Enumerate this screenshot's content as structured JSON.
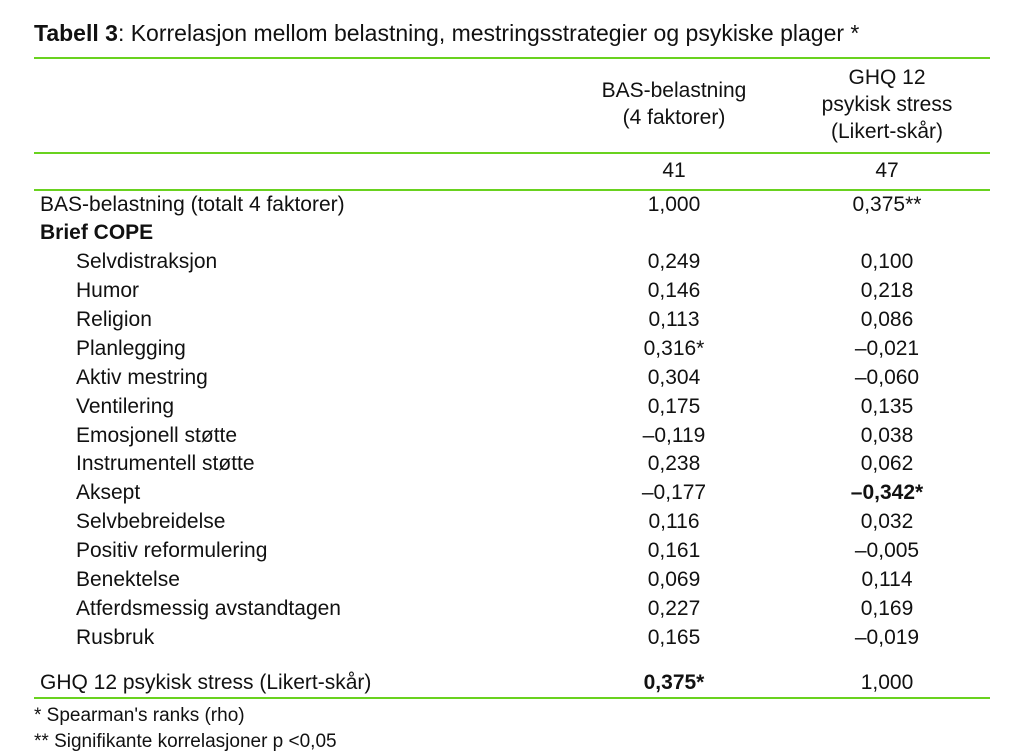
{
  "title_label": "Tabell 3",
  "title_text": ": Korrelasjon mellom belastning, mestringsstrategier og psykiske plager *",
  "colors": {
    "rule": "#69d21f",
    "text": "#111111",
    "bg": "#ffffff"
  },
  "font_sizes": {
    "title": 23,
    "body": 21,
    "foot": 19
  },
  "columns": [
    {
      "key": "bas",
      "header_lines": [
        "BAS-belastning",
        "(4 faktorer)"
      ],
      "n": "41"
    },
    {
      "key": "ghq",
      "header_lines": [
        "GHQ 12",
        "psykisk stress",
        "(Likert-skår)"
      ],
      "n": "47"
    }
  ],
  "row_bas_total": {
    "label": "BAS-belastning (totalt 4 faktorer)",
    "bas": "1,000",
    "ghq": "0,375**"
  },
  "section_briefcope_label": "Brief COPE",
  "briefcope_rows": [
    {
      "label": "Selvdistraksjon",
      "bas": "0,249",
      "ghq": "0,100"
    },
    {
      "label": "Humor",
      "bas": "0,146",
      "ghq": "0,218"
    },
    {
      "label": "Religion",
      "bas": "0,113",
      "ghq": "0,086"
    },
    {
      "label": "Planlegging",
      "bas": "0,316*",
      "ghq": "–0,021"
    },
    {
      "label": "Aktiv mestring",
      "bas": "0,304",
      "ghq": "–0,060"
    },
    {
      "label": "Ventilering",
      "bas": "0,175",
      "ghq": "0,135"
    },
    {
      "label": "Emosjonell støtte",
      "bas": "–0,119",
      "ghq": "0,038"
    },
    {
      "label": "Instrumentell støtte",
      "bas": "0,238",
      "ghq": "0,062"
    },
    {
      "label": "Aksept",
      "bas": "–0,177",
      "ghq": "–0,342*",
      "ghq_bold": true
    },
    {
      "label": "Selvbebreidelse",
      "bas": "0,116",
      "ghq": "0,032"
    },
    {
      "label": "Positiv reformulering",
      "bas": "0,161",
      "ghq": "–0,005"
    },
    {
      "label": "Benektelse",
      "bas": "0,069",
      "ghq": "0,114"
    },
    {
      "label": "Atferdsmessig avstandtagen",
      "bas": "0,227",
      "ghq": "0,169"
    },
    {
      "label": "Rusbruk",
      "bas": "0,165",
      "ghq": "–0,019"
    }
  ],
  "row_ghq_total": {
    "label": "GHQ 12 psykisk stress (Likert-skår)",
    "bas": "0,375*",
    "bas_bold": true,
    "ghq": "1,000"
  },
  "footnotes": [
    "* Spearman's ranks (rho)",
    "** Signifikante korrelasjoner p <0,05"
  ]
}
